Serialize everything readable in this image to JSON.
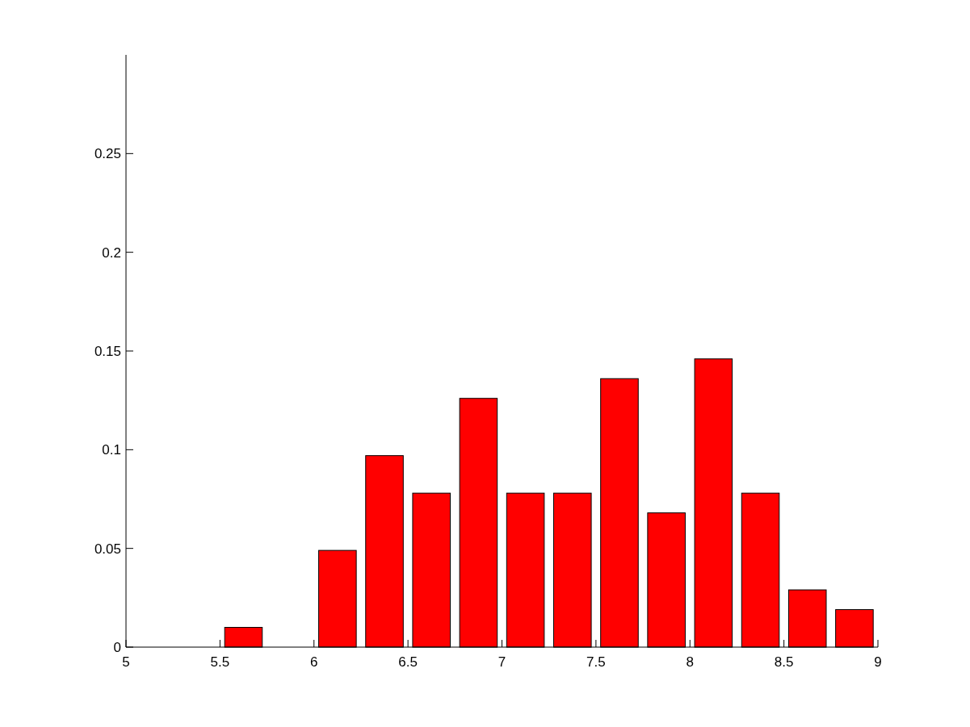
{
  "chart_data": {
    "type": "histogram",
    "bins": [
      5,
      5.25,
      5.5,
      5.75,
      6,
      6.25,
      6.5,
      6.75,
      7,
      7.25,
      7.5,
      7.75,
      8,
      8.25,
      8.5,
      8.75,
      9
    ],
    "values": [
      0,
      0,
      0.01,
      0,
      0.049,
      0.097,
      0.078,
      0.126,
      0.078,
      0.078,
      0.136,
      0.068,
      0.146,
      0.078,
      0.029,
      0.019
    ],
    "color": "#ff0000",
    "xlim": [
      5,
      9
    ],
    "ylim": [
      0,
      0.3
    ],
    "xticks": [
      5,
      5.5,
      6,
      6.5,
      7,
      7.5,
      8,
      8.5,
      9
    ],
    "yticks": [
      0,
      0.05,
      0.1,
      0.15,
      0.2,
      0.25
    ],
    "grid": false
  }
}
